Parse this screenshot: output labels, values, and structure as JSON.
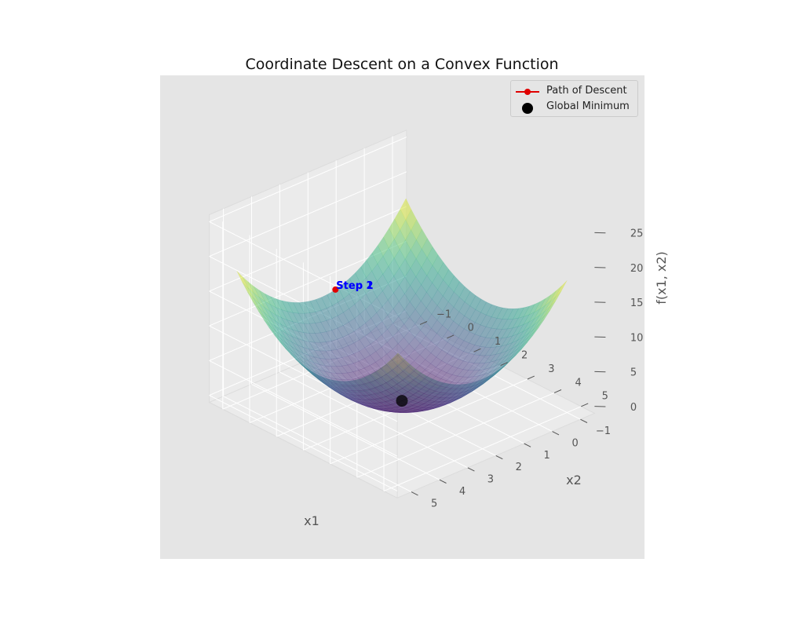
{
  "chart_data": {
    "type": "surface",
    "title": "Coordinate Descent on a Convex Function",
    "xlabel": "x1",
    "ylabel": "x2",
    "zlabel": "f(x1, x2)",
    "function": "f(x1, x2) = (x1 - 2)^2 + (x2 - 2)^2",
    "xlim": [
      -1.5,
      5.5
    ],
    "ylim": [
      -1.5,
      5.5
    ],
    "zlim": [
      -1,
      26
    ],
    "xticks": [
      "−1",
      "0",
      "1",
      "2",
      "3",
      "4",
      "5"
    ],
    "yticks": [
      "−1",
      "0",
      "1",
      "2",
      "3",
      "4",
      "5"
    ],
    "zticks": [
      "0",
      "5",
      "10",
      "15",
      "20",
      "25"
    ],
    "grid": true,
    "colormap": "viridis",
    "surface_alpha": 0.5,
    "path_of_descent": {
      "name": "Path of Descent",
      "color": "#e00000",
      "points": [
        {
          "x1": -1,
          "x2": 1.5,
          "f": 9.25
        }
      ],
      "annotations": [
        "Step 1",
        "Step 2"
      ],
      "annotation_color": "#0000ff"
    },
    "global_minimum": {
      "name": "Global Minimum",
      "x1": 2,
      "x2": 2,
      "f": 0,
      "color": "#000000"
    },
    "legend": {
      "position": "top-right",
      "entries": [
        "Path of Descent",
        "Global Minimum"
      ]
    },
    "colors": {
      "axes_background": "#e5e5e5",
      "pane": "#ebebeb",
      "grid": "#ffffff",
      "tick_text": "#555555",
      "label_text": "#555555"
    }
  }
}
